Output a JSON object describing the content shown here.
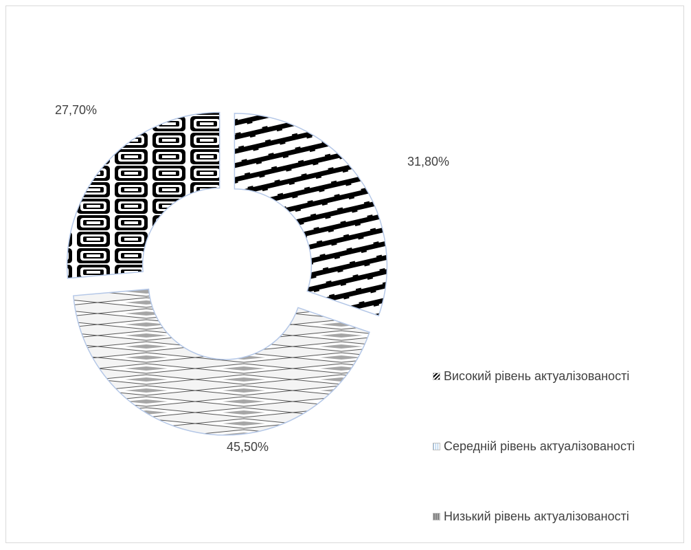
{
  "chart_data": {
    "type": "donut",
    "series": [
      {
        "name": "Високий рівень актуалізованості",
        "value": 31.8,
        "label": "31,80%",
        "pattern": "diagonal-stripes"
      },
      {
        "name": "Середній рівень актуалізованості",
        "value": 45.5,
        "label": "45,50%",
        "pattern": "diamonds"
      },
      {
        "name": "Низький рівень актуалізованості",
        "value": 27.7,
        "label": "27,70%",
        "pattern": "concentric-squares"
      }
    ],
    "title": "",
    "legend_position": "bottom-right",
    "colors": {
      "stroke": "#b4c7e7",
      "dark": "#000000",
      "grey": "#808080",
      "light": "#f2f2f2"
    }
  }
}
